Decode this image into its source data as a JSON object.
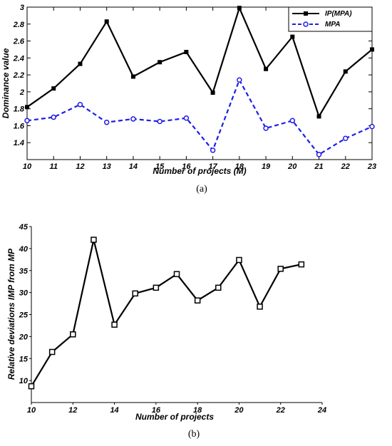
{
  "colors": {
    "series_black": "#000000",
    "series_blue": "#1f1fe6"
  },
  "chart_data": [
    {
      "type": "line",
      "caption": "(a)",
      "xlabel": "Number of projects (M)",
      "ylabel": "Dominance  value",
      "xlim": [
        10,
        23
      ],
      "ylim": [
        1.2,
        3
      ],
      "xticks": [
        "10",
        "11",
        "12",
        "13",
        "14",
        "15",
        "16",
        "17",
        "18",
        "19",
        "20",
        "21",
        "22",
        "23"
      ],
      "yticks": [
        "1.4",
        "1.6",
        "1.8",
        "2",
        "2.2",
        "2.4",
        "2.6",
        "2.8",
        "3"
      ],
      "legend_position": "top-right",
      "x": [
        10,
        11,
        12,
        13,
        14,
        15,
        16,
        17,
        18,
        19,
        20,
        21,
        22,
        23
      ],
      "series": [
        {
          "name": "IP(MPA)",
          "style": "solid",
          "marker": "square",
          "values": [
            1.82,
            2.04,
            2.33,
            2.83,
            2.18,
            2.35,
            2.47,
            1.99,
            2.99,
            2.27,
            2.65,
            1.71,
            2.24,
            2.5
          ]
        },
        {
          "name": "MPA",
          "style": "dashed",
          "marker": "circle",
          "values": [
            1.66,
            1.7,
            1.85,
            1.64,
            1.68,
            1.65,
            1.69,
            1.31,
            2.14,
            1.57,
            1.66,
            1.26,
            1.45,
            1.59
          ]
        }
      ]
    },
    {
      "type": "line",
      "caption": "(b)",
      "xlabel": "Number of projects",
      "ylabel": "Relative deviations IMP from MP",
      "xlim": [
        10,
        24
      ],
      "ylim": [
        5,
        45
      ],
      "xticks": [
        "10",
        "12",
        "14",
        "16",
        "18",
        "20",
        "22",
        "24"
      ],
      "yticks": [
        "10",
        "15",
        "20",
        "25",
        "30",
        "35",
        "40",
        "45"
      ],
      "x": [
        10,
        11,
        12,
        13,
        14,
        15,
        16,
        17,
        18,
        19,
        20,
        21,
        22,
        23
      ],
      "series": [
        {
          "name": "",
          "style": "solid",
          "marker": "square-open",
          "values": [
            8.7,
            16.5,
            20.5,
            42.0,
            22.7,
            29.8,
            31.1,
            34.2,
            28.2,
            31.1,
            37.4,
            26.8,
            35.4,
            36.4
          ]
        }
      ]
    }
  ]
}
